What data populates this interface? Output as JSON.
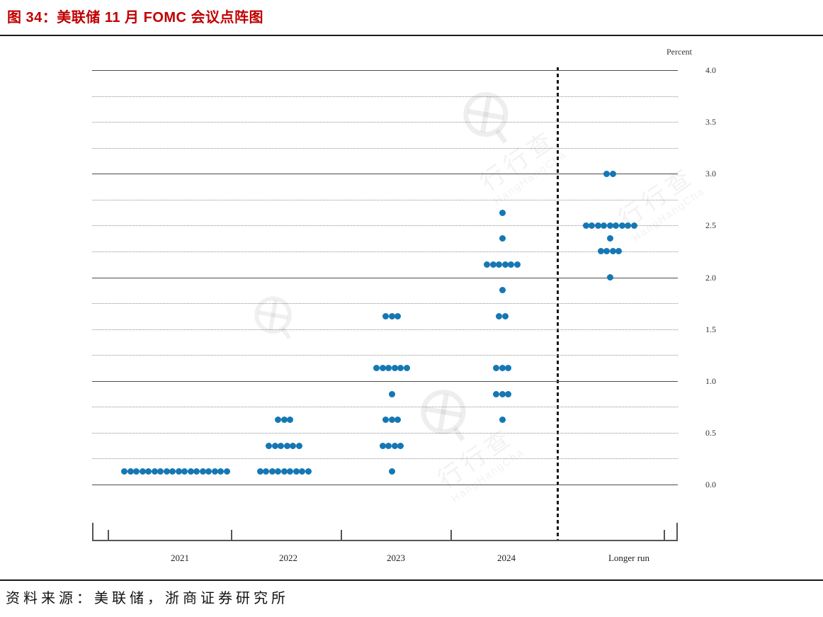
{
  "page": {
    "title": "图  34：美联储 11 月 FOMC 会议点阵图",
    "source": "资料来源：美联储，浙商证券研究所"
  },
  "watermark": {
    "logo_icon": "magnifier-circle-icon",
    "cn_text": "行行查",
    "en_text": "HangHangCha"
  },
  "chart_data": {
    "type": "scatter",
    "subtype": "fomc-dot-plot",
    "title": "图 34：美联储 11 月 FOMC 会议点阵图",
    "ylabel": "Percent",
    "ylim": [
      0.0,
      4.0
    ],
    "gridline_step": 0.25,
    "grid_solid_at_integers": true,
    "y_tick_labels": [
      "4.0",
      "3.5",
      "3.0",
      "2.5",
      "2.0",
      "1.5",
      "1.0",
      "0.5",
      "0.0"
    ],
    "categories": [
      "2021",
      "2022",
      "2023",
      "2024",
      "Longer run"
    ],
    "dot_color": "#1577b4",
    "series": [
      {
        "name": "2021",
        "dots": [
          {
            "rate": 0.125,
            "count": 18
          }
        ]
      },
      {
        "name": "2022",
        "dots": [
          {
            "rate": 0.625,
            "count": 3
          },
          {
            "rate": 0.375,
            "count": 6
          },
          {
            "rate": 0.125,
            "count": 9
          }
        ]
      },
      {
        "name": "2023",
        "dots": [
          {
            "rate": 1.625,
            "count": 3
          },
          {
            "rate": 1.125,
            "count": 6
          },
          {
            "rate": 0.875,
            "count": 1
          },
          {
            "rate": 0.625,
            "count": 3
          },
          {
            "rate": 0.375,
            "count": 4
          },
          {
            "rate": 0.125,
            "count": 1
          }
        ]
      },
      {
        "name": "2024",
        "dots": [
          {
            "rate": 2.625,
            "count": 1
          },
          {
            "rate": 2.375,
            "count": 1
          },
          {
            "rate": 2.125,
            "count": 6
          },
          {
            "rate": 1.875,
            "count": 1
          },
          {
            "rate": 1.625,
            "count": 2
          },
          {
            "rate": 1.125,
            "count": 3
          },
          {
            "rate": 0.875,
            "count": 3
          },
          {
            "rate": 0.625,
            "count": 1
          }
        ]
      },
      {
        "name": "Longer run",
        "dots": [
          {
            "rate": 3.0,
            "count": 2
          },
          {
            "rate": 2.5,
            "count": 9
          },
          {
            "rate": 2.375,
            "count": 1
          },
          {
            "rate": 2.25,
            "count": 4
          },
          {
            "rate": 2.0,
            "count": 1
          }
        ]
      }
    ],
    "annotations": {
      "longer_run_separator": "dashed vertical line between 2024 and Longer run"
    }
  }
}
